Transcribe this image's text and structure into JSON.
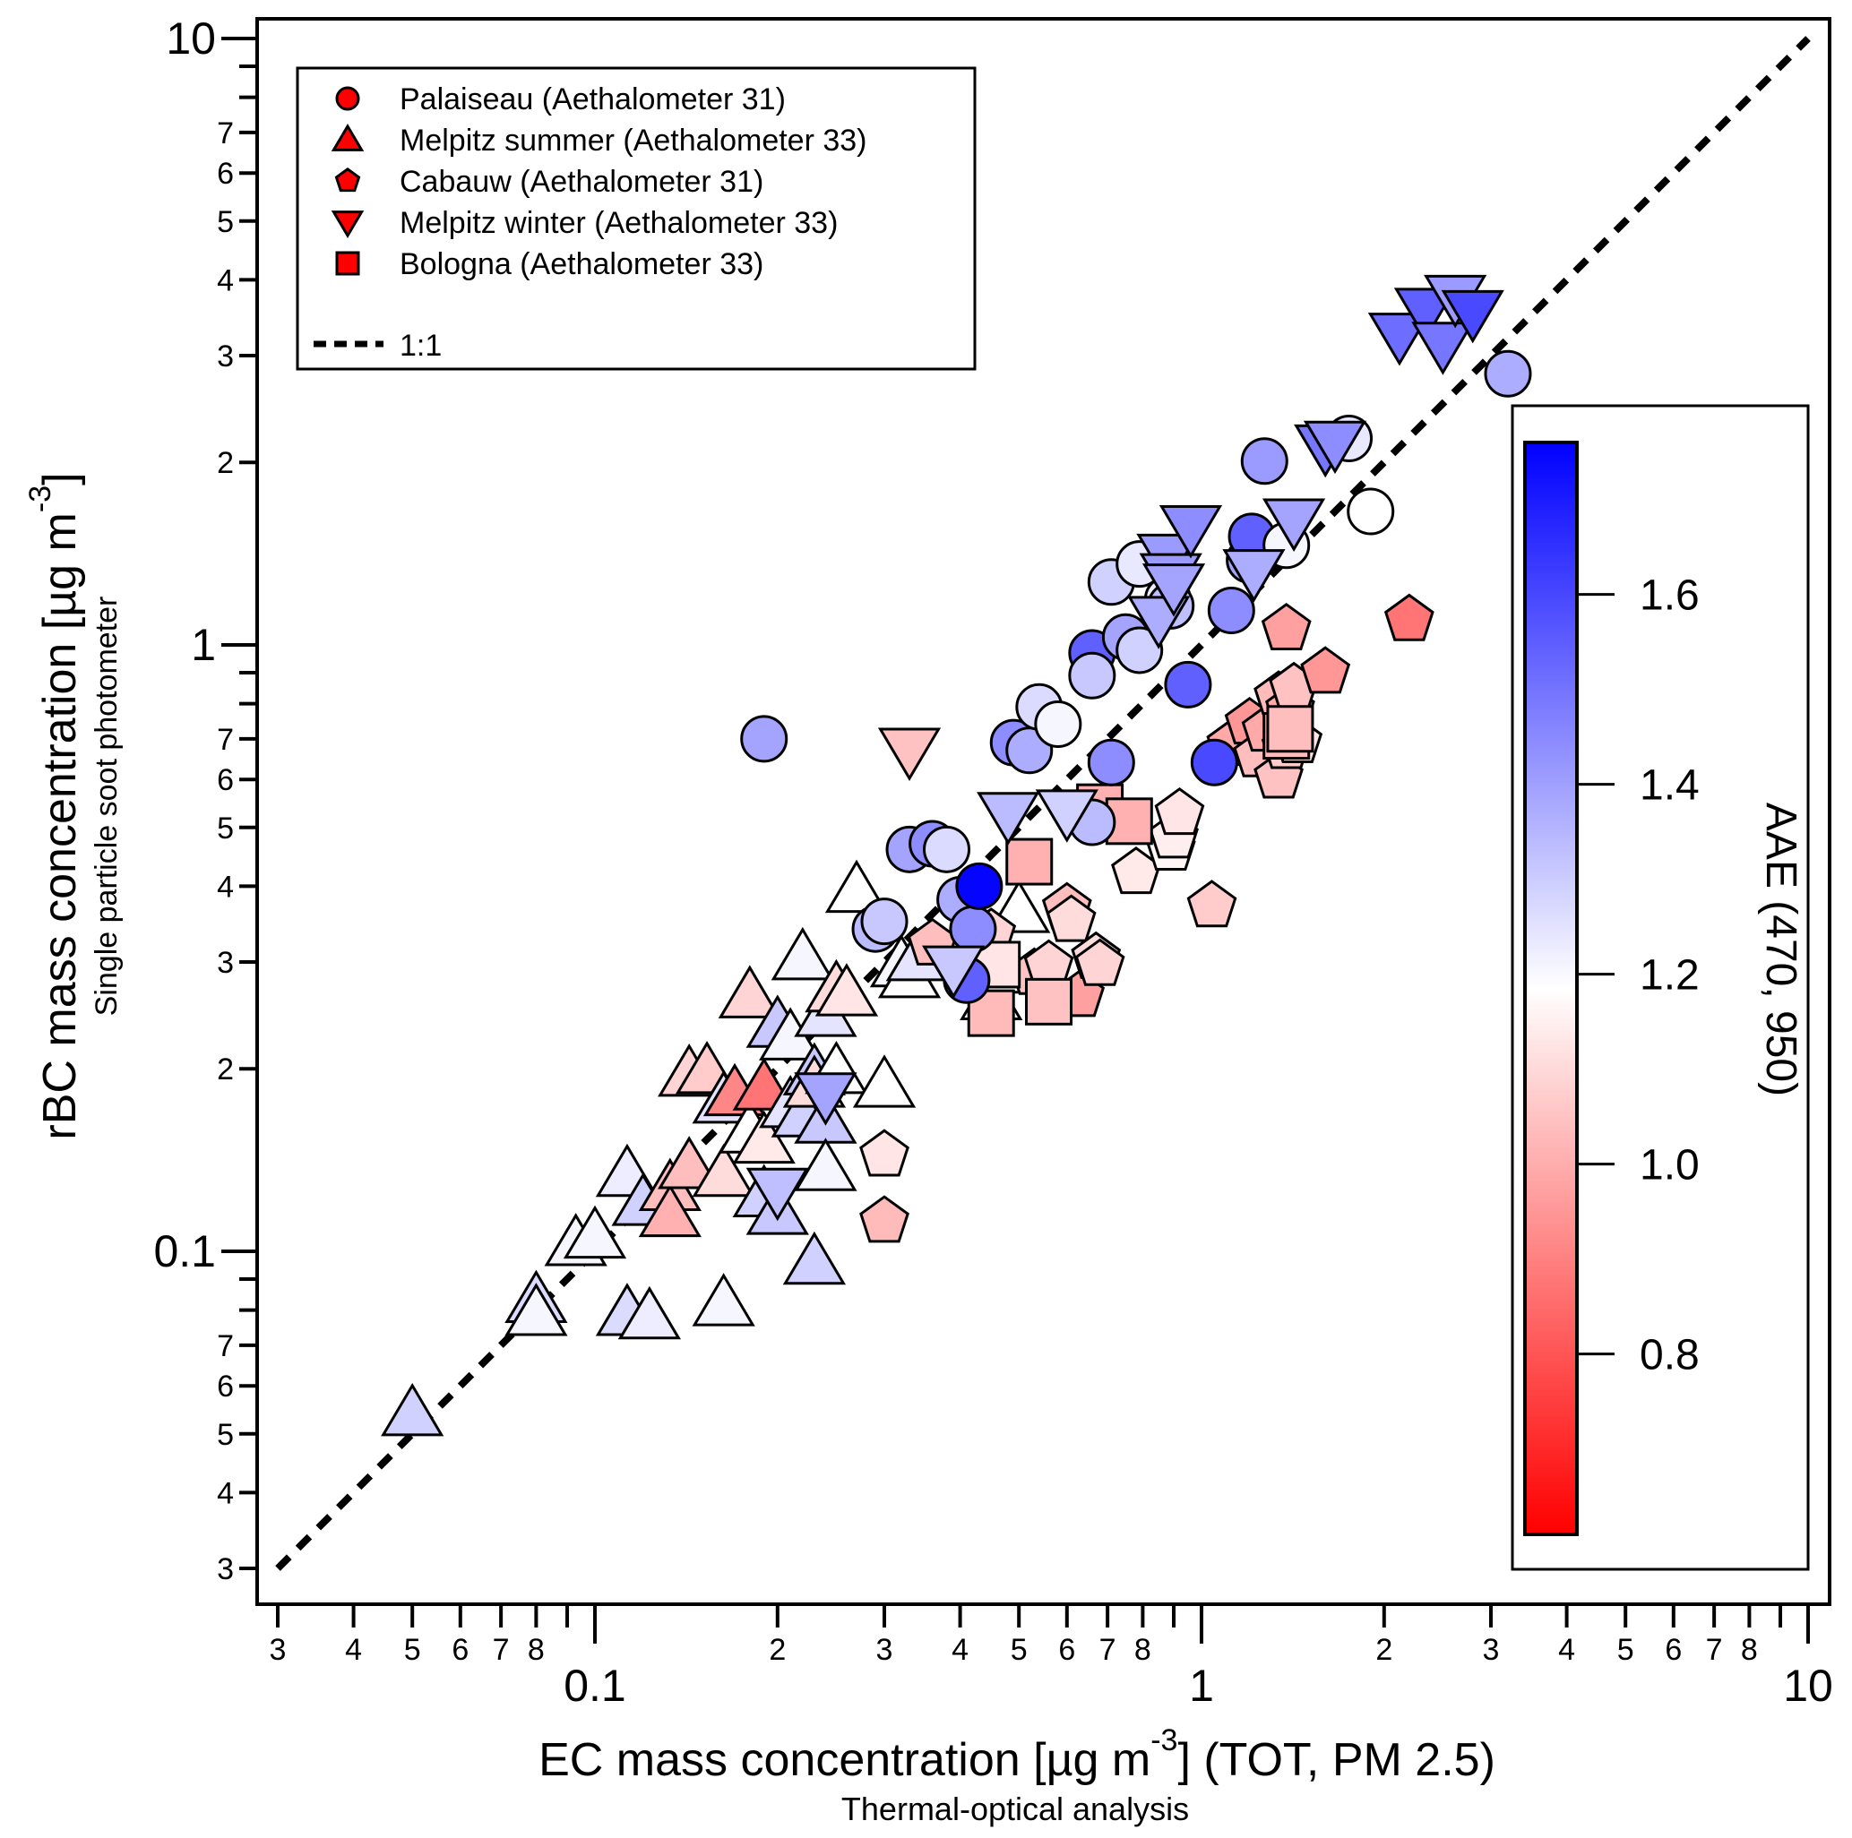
{
  "chart_data": {
    "type": "scatter",
    "x_scale": "log",
    "y_scale": "log",
    "xlim": [
      0.028,
      11.2
    ],
    "ylim": [
      0.028,
      11.2
    ],
    "xlabel": "EC mass concentration  [µg m",
    "xlabel_sup": "-3",
    "xlabel_tail": "]  (TOT, PM 2.5)",
    "xlabel_sub": "Thermal-optical analysis",
    "ylabel": "rBC mass concentration [µg m",
    "ylabel_sup": "-3",
    "ylabel_tail": "]",
    "ylabel_sub": "Single particle soot photometer",
    "x_major_ticks": [
      {
        "v": 0.1,
        "label": "0.1"
      },
      {
        "v": 1,
        "label": "1"
      },
      {
        "v": 10,
        "label": "10"
      }
    ],
    "x_minor_ticks": [
      {
        "v": 0.03,
        "label": "3"
      },
      {
        "v": 0.04,
        "label": "4"
      },
      {
        "v": 0.05,
        "label": "5"
      },
      {
        "v": 0.06,
        "label": "6"
      },
      {
        "v": 0.07,
        "label": "7"
      },
      {
        "v": 0.08,
        "label": "8"
      },
      {
        "v": 0.09,
        "label": ""
      },
      {
        "v": 0.2,
        "label": "2"
      },
      {
        "v": 0.3,
        "label": "3"
      },
      {
        "v": 0.4,
        "label": "4"
      },
      {
        "v": 0.5,
        "label": "5"
      },
      {
        "v": 0.6,
        "label": "6"
      },
      {
        "v": 0.7,
        "label": "7"
      },
      {
        "v": 0.8,
        "label": "8"
      },
      {
        "v": 0.9,
        "label": ""
      },
      {
        "v": 2,
        "label": "2"
      },
      {
        "v": 3,
        "label": "3"
      },
      {
        "v": 4,
        "label": "4"
      },
      {
        "v": 5,
        "label": "5"
      },
      {
        "v": 6,
        "label": "6"
      },
      {
        "v": 7,
        "label": "7"
      },
      {
        "v": 8,
        "label": "8"
      },
      {
        "v": 9,
        "label": ""
      }
    ],
    "y_major_ticks": [
      {
        "v": 0.1,
        "label": "0.1"
      },
      {
        "v": 1,
        "label": "1"
      },
      {
        "v": 10,
        "label": "10"
      }
    ],
    "y_minor_ticks": [
      {
        "v": 0.03,
        "label": "3"
      },
      {
        "v": 0.04,
        "label": "4"
      },
      {
        "v": 0.05,
        "label": "5"
      },
      {
        "v": 0.06,
        "label": "6"
      },
      {
        "v": 0.07,
        "label": "7"
      },
      {
        "v": 0.08,
        "label": ""
      },
      {
        "v": 0.09,
        "label": ""
      },
      {
        "v": 0.2,
        "label": "2"
      },
      {
        "v": 0.3,
        "label": "3"
      },
      {
        "v": 0.4,
        "label": "4"
      },
      {
        "v": 0.5,
        "label": "5"
      },
      {
        "v": 0.6,
        "label": "6"
      },
      {
        "v": 0.7,
        "label": "7"
      },
      {
        "v": 0.8,
        "label": ""
      },
      {
        "v": 0.9,
        "label": ""
      },
      {
        "v": 2,
        "label": "2"
      },
      {
        "v": 3,
        "label": "3"
      },
      {
        "v": 4,
        "label": "4"
      },
      {
        "v": 5,
        "label": "5"
      },
      {
        "v": 6,
        "label": "6"
      },
      {
        "v": 7,
        "label": "7"
      },
      {
        "v": 8,
        "label": ""
      },
      {
        "v": 9,
        "label": ""
      }
    ],
    "reference_line": {
      "label": "1:1",
      "from": [
        0.03,
        0.03
      ],
      "to": [
        10,
        10
      ],
      "style": "dashed"
    },
    "legend": {
      "placement": "top-left",
      "entries": [
        {
          "label": "Palaiseau (Aethalometer 31)",
          "marker": "circle",
          "color": "#ff0000"
        },
        {
          "label": "Melpitz summer (Aethalometer 33)",
          "marker": "triangle-up",
          "color": "#ff0000"
        },
        {
          "label": "Cabauw (Aethalometer 31)",
          "marker": "pentagon",
          "color": "#ff0000"
        },
        {
          "label": "Melpitz winter (Aethalometer 33)",
          "marker": "triangle-down",
          "color": "#ff0000"
        },
        {
          "label": "Bologna (Aethalometer 33)",
          "marker": "square",
          "color": "#ff0000"
        }
      ],
      "line_label": "1:1"
    },
    "colorbar": {
      "title": "AAE (470, 950)",
      "range": [
        0.61,
        1.76
      ],
      "center": 1.2,
      "low_color": "#ff0000",
      "mid_color": "#ffffff",
      "high_color": "#0000ff",
      "ticks": [
        {
          "v": 0.8,
          "label": "0.8"
        },
        {
          "v": 1.0,
          "label": "1.0"
        },
        {
          "v": 1.2,
          "label": "1.2"
        },
        {
          "v": 1.4,
          "label": "1.4"
        },
        {
          "v": 1.6,
          "label": "1.6"
        }
      ],
      "placement": "right"
    },
    "series": [
      {
        "name": "Palaiseau (Aethalometer 31)",
        "marker": "circle",
        "points": [
          [
            0.19,
            0.7,
            1.4
          ],
          [
            0.29,
            0.34,
            1.35
          ],
          [
            0.3,
            0.35,
            1.32
          ],
          [
            0.33,
            0.46,
            1.4
          ],
          [
            0.36,
            0.47,
            1.45
          ],
          [
            0.38,
            0.46,
            1.28
          ],
          [
            0.4,
            0.38,
            1.38
          ],
          [
            0.41,
            0.28,
            1.55
          ],
          [
            0.42,
            0.34,
            1.45
          ],
          [
            0.43,
            0.4,
            1.75
          ],
          [
            0.49,
            0.69,
            1.45
          ],
          [
            0.52,
            0.67,
            1.38
          ],
          [
            0.54,
            0.79,
            1.28
          ],
          [
            0.58,
            0.74,
            1.22
          ],
          [
            0.66,
            0.97,
            1.55
          ],
          [
            0.66,
            0.89,
            1.32
          ],
          [
            0.66,
            0.51,
            1.35
          ],
          [
            0.71,
            0.64,
            1.45
          ],
          [
            0.71,
            1.27,
            1.3
          ],
          [
            0.75,
            1.03,
            1.4
          ],
          [
            0.79,
            1.36,
            1.25
          ],
          [
            0.79,
            0.98,
            1.3
          ],
          [
            0.88,
            1.19,
            1.24
          ],
          [
            0.89,
            1.16,
            1.34
          ],
          [
            0.95,
            0.86,
            1.55
          ],
          [
            1.05,
            0.64,
            1.6
          ],
          [
            1.12,
            1.14,
            1.45
          ],
          [
            1.2,
            1.38,
            1.4
          ],
          [
            1.21,
            1.51,
            1.55
          ],
          [
            1.27,
            2.01,
            1.42
          ],
          [
            1.38,
            1.46,
            1.22
          ],
          [
            1.75,
            2.19,
            1.25
          ],
          [
            1.9,
            1.66,
            1.2
          ],
          [
            3.2,
            2.8,
            1.38
          ]
        ]
      },
      {
        "name": "Melpitz summer (Aethalometer 33)",
        "marker": "triangle-up",
        "points": [
          [
            0.05,
            0.054,
            1.3
          ],
          [
            0.08,
            0.083,
            1.28
          ],
          [
            0.08,
            0.079,
            1.22
          ],
          [
            0.093,
            0.103,
            1.22
          ],
          [
            0.1,
            0.106,
            1.22
          ],
          [
            0.113,
            0.134,
            1.24
          ],
          [
            0.113,
            0.079,
            1.28
          ],
          [
            0.12,
            0.12,
            1.3
          ],
          [
            0.123,
            0.078,
            1.24
          ],
          [
            0.133,
            0.127,
            1.05
          ],
          [
            0.133,
            0.115,
            1.02
          ],
          [
            0.143,
            0.196,
            1.1
          ],
          [
            0.143,
            0.138,
            1.05
          ],
          [
            0.153,
            0.198,
            1.08
          ],
          [
            0.163,
            0.134,
            1.12
          ],
          [
            0.163,
            0.177,
            1.26
          ],
          [
            0.163,
            0.082,
            1.22
          ],
          [
            0.17,
            0.182,
            0.92
          ],
          [
            0.18,
            0.158,
            1.2
          ],
          [
            0.18,
            0.264,
            1.1
          ],
          [
            0.19,
            0.186,
            0.88
          ],
          [
            0.19,
            0.152,
            1.15
          ],
          [
            0.19,
            0.124,
            1.3
          ],
          [
            0.2,
            0.236,
            1.32
          ],
          [
            0.2,
            0.116,
            1.32
          ],
          [
            0.21,
            0.225,
            1.22
          ],
          [
            0.21,
            0.174,
            1.26
          ],
          [
            0.22,
            0.305,
            1.22
          ],
          [
            0.22,
            0.168,
            1.3
          ],
          [
            0.23,
            0.197,
            1.32
          ],
          [
            0.23,
            0.188,
            1.12
          ],
          [
            0.23,
            0.096,
            1.3
          ],
          [
            0.24,
            0.246,
            1.26
          ],
          [
            0.24,
            0.164,
            1.32
          ],
          [
            0.24,
            0.137,
            1.22
          ],
          [
            0.25,
            0.27,
            1.12
          ],
          [
            0.25,
            0.198,
            1.2
          ],
          [
            0.26,
            0.266,
            1.14
          ],
          [
            0.27,
            0.394,
            1.2
          ],
          [
            0.3,
            0.188,
            1.2
          ],
          [
            0.32,
            0.297,
            1.22
          ],
          [
            0.33,
            0.285,
            1.2
          ],
          [
            0.34,
            0.304,
            1.26
          ],
          [
            0.45,
            0.262,
            1.2
          ],
          [
            0.46,
            0.29,
            1.2
          ],
          [
            0.5,
            0.365,
            1.2
          ]
        ]
      },
      {
        "name": "Cabauw (Aethalometer 31)",
        "marker": "pentagon",
        "points": [
          [
            0.3,
            0.144,
            1.14
          ],
          [
            0.3,
            0.112,
            1.04
          ],
          [
            0.36,
            0.321,
            1.05
          ],
          [
            0.45,
            0.334,
            1.1
          ],
          [
            0.53,
            0.287,
            1.06
          ],
          [
            0.56,
            0.296,
            1.1
          ],
          [
            0.6,
            0.368,
            1.05
          ],
          [
            0.61,
            0.351,
            1.12
          ],
          [
            0.63,
            0.264,
            0.98
          ],
          [
            0.67,
            0.305,
            1.12
          ],
          [
            0.68,
            0.297,
            1.1
          ],
          [
            0.78,
            0.421,
            1.15
          ],
          [
            0.89,
            0.46,
            1.18
          ],
          [
            0.9,
            0.482,
            1.16
          ],
          [
            0.92,
            0.527,
            1.14
          ],
          [
            1.04,
            0.371,
            1.08
          ],
          [
            1.12,
            0.685,
            1.0
          ],
          [
            1.2,
            0.743,
            0.96
          ],
          [
            1.24,
            0.656,
            1.05
          ],
          [
            1.28,
            0.723,
            1.0
          ],
          [
            1.34,
            0.605,
            1.06
          ],
          [
            1.34,
            0.822,
            1.04
          ],
          [
            1.38,
            0.677,
            1.08
          ],
          [
            1.38,
            1.062,
            0.98
          ],
          [
            1.4,
            0.783,
            1.0
          ],
          [
            1.42,
            0.849,
            1.06
          ],
          [
            1.44,
            0.692,
            1.14
          ],
          [
            1.6,
            0.901,
            0.96
          ],
          [
            2.2,
            1.1,
            0.88
          ]
        ]
      },
      {
        "name": "Melpitz winter (Aethalometer 33)",
        "marker": "triangle-down",
        "points": [
          [
            0.2,
            0.126,
            1.34
          ],
          [
            0.24,
            0.181,
            1.4
          ],
          [
            0.33,
            0.67,
            1.06
          ],
          [
            0.39,
            0.293,
            1.32
          ],
          [
            0.48,
            0.525,
            1.35
          ],
          [
            0.6,
            0.53,
            1.3
          ],
          [
            0.85,
            1.105,
            1.38
          ],
          [
            0.88,
            1.4,
            1.42
          ],
          [
            0.89,
            1.3,
            1.42
          ],
          [
            0.9,
            1.25,
            1.4
          ],
          [
            0.96,
            1.56,
            1.45
          ],
          [
            1.22,
            1.32,
            1.38
          ],
          [
            1.42,
            1.6,
            1.4
          ],
          [
            1.6,
            2.12,
            1.5
          ],
          [
            1.66,
            2.15,
            1.45
          ],
          [
            2.12,
            3.24,
            1.52
          ],
          [
            2.34,
            3.56,
            1.55
          ],
          [
            2.5,
            3.13,
            1.5
          ],
          [
            2.62,
            3.74,
            1.42
          ],
          [
            2.8,
            3.53,
            1.6
          ]
        ]
      },
      {
        "name": "Bologna (Aethalometer 33)",
        "marker": "square",
        "points": [
          [
            0.45,
            0.247,
            1.04
          ],
          [
            0.46,
            0.297,
            1.14
          ],
          [
            0.52,
            0.439,
            1.02
          ],
          [
            0.56,
            0.258,
            1.06
          ],
          [
            0.68,
            0.54,
            1.02
          ],
          [
            0.76,
            0.512,
            1.02
          ],
          [
            1.38,
            0.708,
            1.04
          ],
          [
            1.4,
            0.727,
            1.05
          ]
        ]
      }
    ]
  }
}
